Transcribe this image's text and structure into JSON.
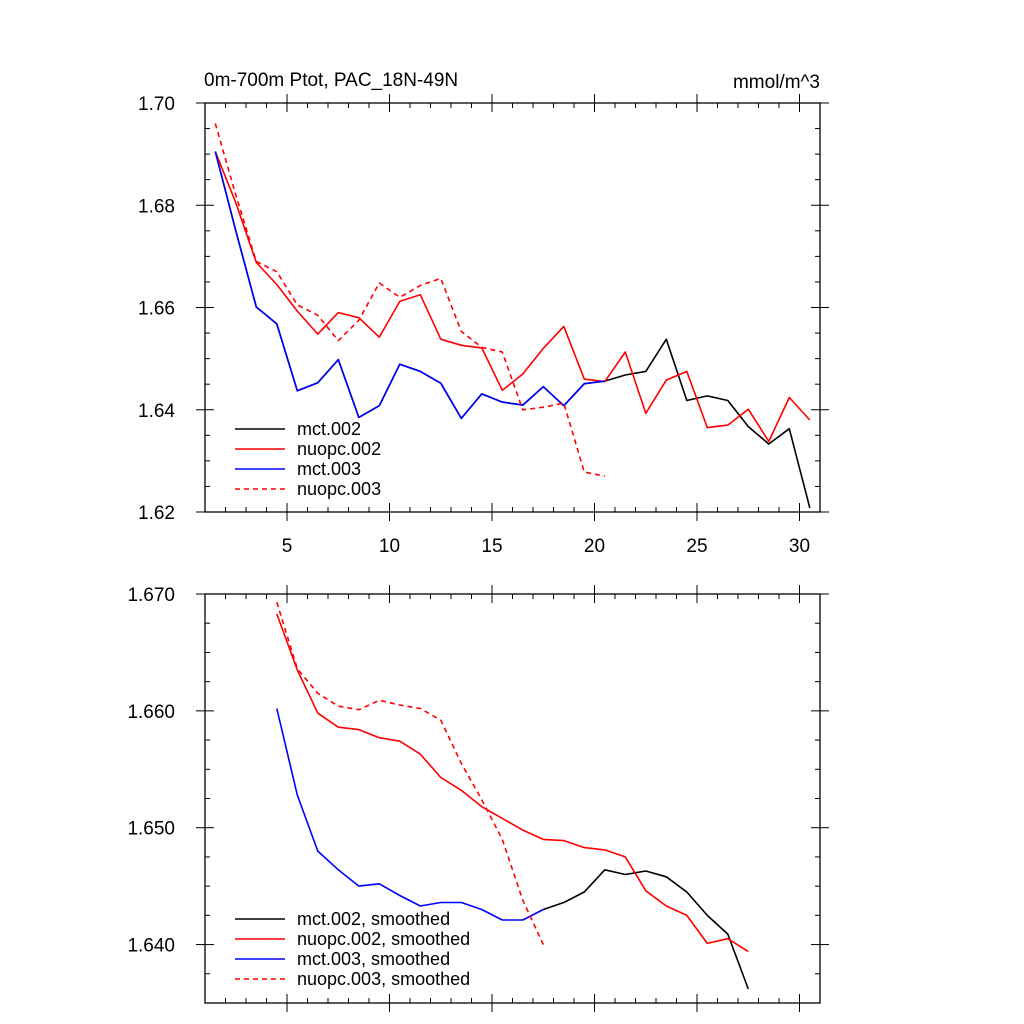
{
  "chart_data": [
    {
      "type": "line",
      "title": "0m-700m Ptot, PAC_18N-49N",
      "units": "mmol/m^3",
      "xlim": [
        1,
        31
      ],
      "ylim": [
        1.62,
        1.7
      ],
      "xticks": [
        5,
        10,
        15,
        20,
        25,
        30
      ],
      "xtick_labels": [
        "5",
        "10",
        "15",
        "20",
        "25",
        "30"
      ],
      "yticks": [
        1.62,
        1.64,
        1.66,
        1.68,
        1.7
      ],
      "ytick_labels": [
        "1.62",
        "1.64",
        "1.66",
        "1.68",
        "1.70"
      ],
      "legend_position": "bottom-left",
      "series": [
        {
          "name": "mct.002",
          "color": "#000000",
          "dash": "solid",
          "x": [
            1.5,
            2.5,
            3.5,
            4.5,
            5.5,
            6.5,
            7.5,
            8.5,
            9.5,
            10.5,
            11.5,
            12.5,
            13.5,
            14.5,
            15.5,
            16.5,
            17.5,
            18.5,
            19.5,
            20.5,
            21.5,
            22.5,
            23.5,
            24.5,
            25.5,
            26.5,
            27.5,
            28.5,
            29.5,
            30.5
          ],
          "y": [
            1.6905,
            1.675,
            1.6601,
            1.6568,
            1.6437,
            1.6453,
            1.6498,
            1.6385,
            1.6408,
            1.6489,
            1.6475,
            1.6452,
            1.6383,
            1.6431,
            1.6415,
            1.6409,
            1.6445,
            1.6408,
            1.6451,
            1.6456,
            1.6468,
            1.6475,
            1.6538,
            1.6418,
            1.6427,
            1.6418,
            1.6367,
            1.6333,
            1.6363,
            1.6208
          ]
        },
        {
          "name": "nuopc.002",
          "color": "#ff0000",
          "dash": "solid",
          "x": [
            1.5,
            2.5,
            3.5,
            4.5,
            5.5,
            6.5,
            7.5,
            8.5,
            9.5,
            10.5,
            11.5,
            12.5,
            13.5,
            14.5,
            15.5,
            16.5,
            17.5,
            18.5,
            19.5,
            20.5,
            21.5,
            22.5,
            23.5,
            24.5,
            25.5,
            26.5,
            27.5,
            28.5,
            29.5,
            30.5
          ],
          "y": [
            1.6905,
            1.6805,
            1.6688,
            1.6645,
            1.6593,
            1.6548,
            1.659,
            1.658,
            1.6542,
            1.6612,
            1.6625,
            1.6538,
            1.6526,
            1.6521,
            1.6438,
            1.647,
            1.652,
            1.6563,
            1.646,
            1.6455,
            1.6513,
            1.6393,
            1.6458,
            1.6475,
            1.6365,
            1.637,
            1.6401,
            1.6338,
            1.6424,
            1.638
          ]
        },
        {
          "name": "mct.003",
          "color": "#0000ff",
          "dash": "solid",
          "x": [
            1.5,
            2.5,
            3.5,
            4.5,
            5.5,
            6.5,
            7.5,
            8.5,
            9.5,
            10.5,
            11.5,
            12.5,
            13.5,
            14.5,
            15.5,
            16.5,
            17.5,
            18.5,
            19.5,
            20.5
          ],
          "y": [
            1.6905,
            1.675,
            1.6601,
            1.6568,
            1.6437,
            1.6453,
            1.6498,
            1.6385,
            1.6408,
            1.6489,
            1.6475,
            1.6452,
            1.6383,
            1.6431,
            1.6415,
            1.6409,
            1.6445,
            1.6408,
            1.6451,
            1.6456
          ]
        },
        {
          "name": "nuopc.003",
          "color": "#ff0000",
          "dash": "dashed",
          "x": [
            1.5,
            2.5,
            3.5,
            4.5,
            5.5,
            6.5,
            7.5,
            8.5,
            9.5,
            10.5,
            11.5,
            12.5,
            13.5,
            14.5,
            15.5,
            16.5,
            17.5,
            18.5,
            19.5,
            20.5
          ],
          "y": [
            1.696,
            1.682,
            1.669,
            1.667,
            1.6605,
            1.6585,
            1.6535,
            1.6575,
            1.6648,
            1.662,
            1.6643,
            1.6657,
            1.6553,
            1.6522,
            1.6513,
            1.64,
            1.6405,
            1.6413,
            1.6278,
            1.627
          ]
        }
      ]
    },
    {
      "type": "line",
      "title": "",
      "xlim": [
        1,
        31
      ],
      "ylim": [
        1.635,
        1.67
      ],
      "xticks": [
        5,
        10,
        15,
        20,
        25,
        30
      ],
      "yticks": [
        1.64,
        1.65,
        1.66,
        1.67
      ],
      "ytick_labels": [
        "1.640",
        "1.650",
        "1.660",
        "1.670"
      ],
      "legend_position": "bottom-left",
      "series": [
        {
          "name": "mct.002, smoothed",
          "color": "#000000",
          "dash": "solid",
          "x": [
            17.5,
            18.5,
            19.5,
            20.5,
            21.5,
            22.5,
            23.5,
            24.5,
            25.5,
            26.5,
            27.5
          ],
          "y": [
            1.643,
            1.6436,
            1.6445,
            1.6464,
            1.646,
            1.6463,
            1.6458,
            1.6445,
            1.6425,
            1.6409,
            1.6362
          ]
        },
        {
          "name": "nuopc.002, smoothed",
          "color": "#ff0000",
          "dash": "solid",
          "x": [
            4.5,
            5.5,
            6.5,
            7.5,
            8.5,
            9.5,
            10.5,
            11.5,
            12.5,
            13.5,
            14.5,
            15.5,
            16.5,
            17.5,
            18.5,
            19.5,
            20.5,
            21.5,
            22.5,
            23.5,
            24.5,
            25.5,
            26.5,
            27.5
          ],
          "y": [
            1.6683,
            1.6635,
            1.6598,
            1.6586,
            1.6584,
            1.6577,
            1.6574,
            1.6563,
            1.6543,
            1.6532,
            1.6518,
            1.6508,
            1.6498,
            1.649,
            1.6489,
            1.6483,
            1.6481,
            1.6475,
            1.6446,
            1.6433,
            1.6425,
            1.6401,
            1.6405,
            1.6394
          ]
        },
        {
          "name": "mct.003, smoothed",
          "color": "#0000ff",
          "dash": "solid",
          "x": [
            4.5,
            5.5,
            6.5,
            7.5,
            8.5,
            9.5,
            10.5,
            11.5,
            12.5,
            13.5,
            14.5,
            15.5,
            16.5,
            17.5
          ],
          "y": [
            1.6602,
            1.6528,
            1.648,
            1.6464,
            1.645,
            1.6452,
            1.6442,
            1.6433,
            1.6436,
            1.6436,
            1.643,
            1.6421,
            1.6421,
            1.643
          ]
        },
        {
          "name": "nuopc.003, smoothed",
          "color": "#ff0000",
          "dash": "dashed",
          "x": [
            4.5,
            5.5,
            6.5,
            7.5,
            8.5,
            9.5,
            10.5,
            11.5,
            12.5,
            13.5,
            14.5,
            15.5,
            16.5,
            17.5
          ],
          "y": [
            1.6693,
            1.6636,
            1.6615,
            1.6604,
            1.6601,
            1.6609,
            1.6605,
            1.6602,
            1.6592,
            1.6555,
            1.6524,
            1.649,
            1.6438,
            1.64
          ]
        }
      ]
    }
  ]
}
